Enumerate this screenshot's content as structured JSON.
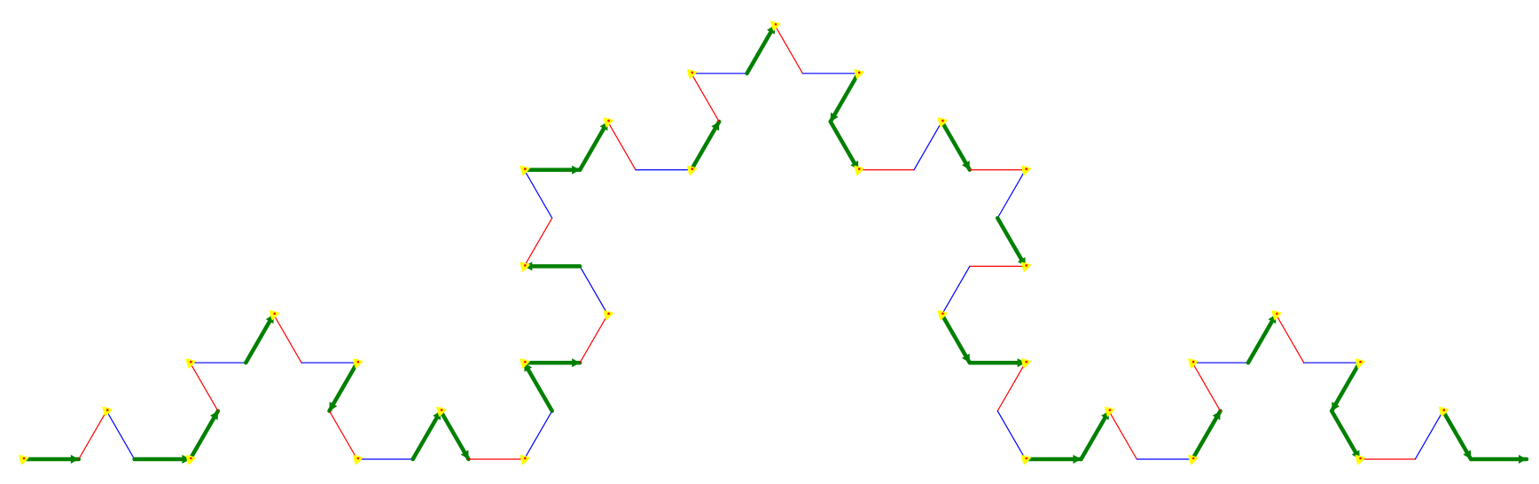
{
  "diagram": {
    "type": "koch-curve-level-3",
    "colors": {
      "background": "#ffffff",
      "segment_green": "#008000",
      "segment_red": "#ff0000",
      "segment_blue": "#0000ff",
      "marker_yellow": "#ffff00",
      "marker_red": "#ff0000",
      "marker_black": "#000000"
    },
    "segment_order": [
      "G",
      "R",
      "B",
      "G",
      "G",
      "R",
      "B",
      "G",
      "R",
      "B",
      "G",
      "R",
      "B",
      "G",
      "G",
      "R",
      "B",
      "G",
      "G",
      "R",
      "B",
      "G",
      "R",
      "B",
      "G",
      "G",
      "R",
      "B",
      "G",
      "R",
      "B",
      "G",
      "R",
      "B",
      "G",
      "G",
      "R",
      "B",
      "G",
      "R",
      "B",
      "G",
      "R",
      "B",
      "G",
      "G",
      "R",
      "B",
      "G",
      "G",
      "R",
      "B",
      "G",
      "R",
      "B",
      "G",
      "R",
      "B",
      "G",
      "G",
      "R",
      "B",
      "G",
      "G"
    ]
  }
}
